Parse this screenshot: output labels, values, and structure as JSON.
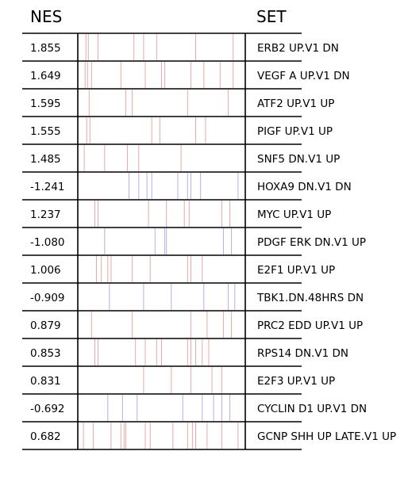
{
  "chart_data": {
    "type": "table",
    "columns": [
      "NES",
      "SET"
    ],
    "rows": [
      {
        "nes": "1.855",
        "set": "ERB2 UP.V1 DN",
        "direction": "up",
        "hits": [
          0.035,
          0.05,
          0.11,
          0.33,
          0.39,
          0.47,
          0.71,
          0.94
        ]
      },
      {
        "nes": "1.649",
        "set": "VEGF A UP.V1 DN",
        "direction": "up",
        "hits": [
          0.03,
          0.045,
          0.07,
          0.25,
          0.4,
          0.5,
          0.52,
          0.68,
          0.76,
          0.86,
          0.94
        ]
      },
      {
        "nes": "1.595",
        "set": "ATF2 UP.V1 UP",
        "direction": "up",
        "hits": [
          0.055,
          0.28,
          0.32,
          0.66,
          0.91
        ]
      },
      {
        "nes": "1.555",
        "set": "PIGF UP.V1 UP",
        "direction": "up",
        "hits": [
          0.04,
          0.06,
          0.44,
          0.49,
          0.71,
          0.77
        ]
      },
      {
        "nes": "1.485",
        "set": "SNF5 DN.V1 UP",
        "direction": "up",
        "hits": [
          0.025,
          0.15,
          0.29,
          0.36,
          0.62
        ]
      },
      {
        "nes": "-1.241",
        "set": "HOXA9 DN.V1 DN",
        "direction": "down",
        "hits": [
          0.3,
          0.36,
          0.41,
          0.44,
          0.6,
          0.66,
          0.68,
          0.74,
          0.97
        ]
      },
      {
        "nes": "1.237",
        "set": "MYC UP.V1 UP",
        "direction": "up",
        "hits": [
          0.09,
          0.11,
          0.42,
          0.53,
          0.64,
          0.67,
          0.87,
          0.92
        ]
      },
      {
        "nes": "-1.080",
        "set": "PDGF ERK DN.V1 UP",
        "direction": "down",
        "hits": [
          0.15,
          0.46,
          0.52,
          0.53,
          0.88,
          0.93
        ]
      },
      {
        "nes": "1.006",
        "set": "E2F1 UP.V1 UP",
        "direction": "up",
        "hits": [
          0.1,
          0.13,
          0.17,
          0.19,
          0.32,
          0.43,
          0.66,
          0.68,
          0.75
        ]
      },
      {
        "nes": "-0.909",
        "set": "TBK1.DN.48HRS DN",
        "direction": "down",
        "hits": [
          0.18,
          0.39,
          0.56,
          0.76,
          0.91,
          0.95
        ]
      },
      {
        "nes": "0.879",
        "set": "PRC2 EDD UP.V1 UP",
        "direction": "up",
        "hits": [
          0.07,
          0.32,
          0.68,
          0.78,
          0.88,
          0.93
        ]
      },
      {
        "nes": "0.853",
        "set": "RPS14 DN.V1 DN",
        "direction": "up",
        "hits": [
          0.09,
          0.11,
          0.34,
          0.4,
          0.47,
          0.5,
          0.66,
          0.68,
          0.71,
          0.75,
          0.79
        ]
      },
      {
        "nes": "0.831",
        "set": "E2F3 UP.V1 UP",
        "direction": "up",
        "hits": [
          0.39,
          0.56,
          0.68,
          0.81,
          0.87
        ]
      },
      {
        "nes": "-0.692",
        "set": "CYCLIN D1 UP.V1 DN",
        "direction": "down",
        "hits": [
          0.17,
          0.26,
          0.35,
          0.63,
          0.75,
          0.82,
          0.87,
          0.92
        ]
      },
      {
        "nes": "0.682",
        "set": "GCNP SHH UP LATE.V1 UP",
        "direction": "up",
        "hits": [
          0.02,
          0.08,
          0.19,
          0.25,
          0.27,
          0.28,
          0.4,
          0.43,
          0.57,
          0.66,
          0.69,
          0.71,
          0.78,
          0.87,
          0.97
        ]
      }
    ],
    "colors": {
      "up": "#e8a8a8",
      "down": "#b0b0e8",
      "line": "#000000"
    }
  }
}
